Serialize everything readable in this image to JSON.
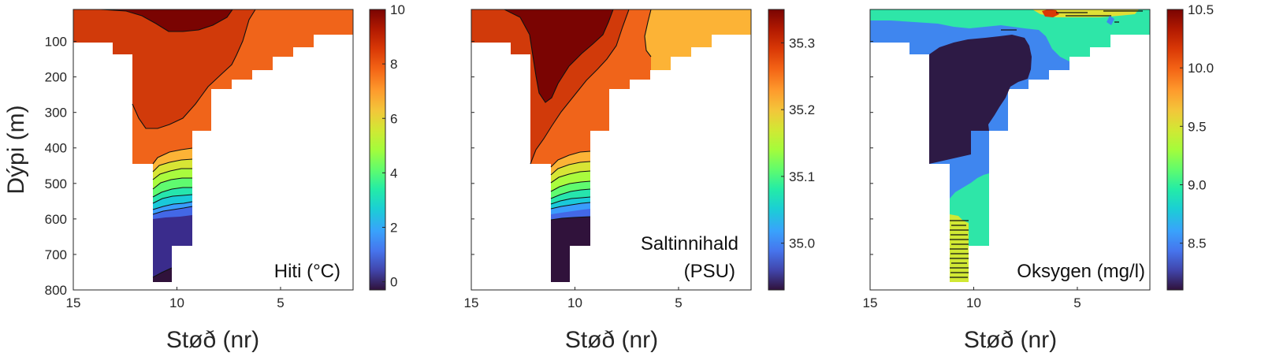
{
  "chart_data": [
    {
      "type": "heatmap",
      "panel_label": "Hiti (°C)",
      "xlabel": "Støð (nr)",
      "ylabel": "Dýpi (m)",
      "x_ticks": [
        "15",
        "10",
        "5"
      ],
      "y_ticks": [
        "100",
        "200",
        "300",
        "400",
        "500",
        "600",
        "700",
        "800"
      ],
      "xlim": [
        15,
        1.5
      ],
      "ylim": [
        10,
        800
      ],
      "colorbar": {
        "ticks": [
          "0",
          "2",
          "4",
          "6",
          "8",
          "10"
        ],
        "range": [
          -0.3,
          10
        ]
      },
      "bottom_profile": [
        [
          15,
          95
        ],
        [
          13,
          95
        ],
        [
          13,
          130
        ],
        [
          12,
          130
        ],
        [
          12,
          440
        ],
        [
          11,
          440
        ],
        [
          11,
          785
        ],
        [
          10,
          785
        ],
        [
          10,
          675
        ],
        [
          9,
          675
        ],
        [
          9,
          350
        ],
        [
          8,
          350
        ],
        [
          8,
          225
        ],
        [
          7,
          225
        ],
        [
          7,
          195
        ],
        [
          6,
          195
        ],
        [
          6,
          150
        ],
        [
          5,
          150
        ],
        [
          5,
          120
        ],
        [
          4,
          120
        ],
        [
          4,
          95
        ],
        [
          3,
          95
        ],
        [
          3,
          75
        ],
        [
          1.5,
          75
        ]
      ],
      "contour_levels": [
        9.5,
        9,
        8,
        7,
        6,
        5,
        4,
        3,
        2,
        1
      ]
    },
    {
      "type": "heatmap",
      "panel_label_lines": [
        "Saltinnihald",
        "(PSU)"
      ],
      "xlabel": "Støð (nr)",
      "x_ticks": [
        "15",
        "10",
        "5"
      ],
      "xlim": [
        15,
        1.5
      ],
      "ylim": [
        10,
        800
      ],
      "colorbar": {
        "ticks": [
          "35.0",
          "35.1",
          "35.2",
          "35.3"
        ],
        "range": [
          34.93,
          35.35
        ]
      },
      "contour_levels": [
        35.3,
        35.25,
        35.2,
        35.15,
        35.1,
        35.05,
        35.0
      ]
    },
    {
      "type": "heatmap",
      "panel_label": "Oksygen (mg/l)",
      "xlabel": "Støð (nr)",
      "x_ticks": [
        "15",
        "10",
        "5"
      ],
      "xlim": [
        15,
        1.5
      ],
      "ylim": [
        10,
        800
      ],
      "colorbar": {
        "ticks": [
          "8.5",
          "9.0",
          "9.5",
          "10.0",
          "10.5"
        ],
        "range": [
          8.1,
          10.5
        ]
      },
      "value_regions": [
        {
          "description_value": 8.7,
          "where": "upper layer and edges"
        },
        {
          "description_value": 8.15,
          "where": "deep core stations 12-7"
        },
        {
          "description_value": 9.0,
          "where": "surface and deep stations 11-9"
        },
        {
          "description_value": 10.3,
          "where": "surface near station 6"
        }
      ]
    }
  ],
  "colors": {
    "turbo_stops": [
      "#30123b",
      "#4145ab",
      "#4675ed",
      "#39a2fc",
      "#1bcfd4",
      "#24eca6",
      "#61fc6c",
      "#a4fc3b",
      "#d1e834",
      "#f3c63a",
      "#fe9b2d",
      "#f36315",
      "#d93806",
      "#b11901",
      "#7a0402"
    ]
  }
}
